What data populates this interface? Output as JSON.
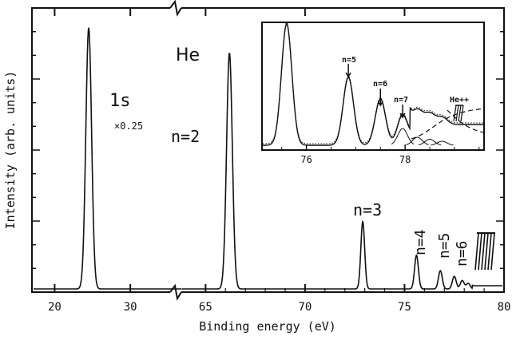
{
  "chart_data": [
    {
      "type": "line",
      "xlabel": "Binding energy (eV)",
      "ylabel": "Intensity (arb. units)",
      "x_axis_break": true,
      "x_segments": [
        {
          "range": [
            17,
            36
          ],
          "ticks": [
            20,
            30
          ]
        },
        {
          "range": [
            63.5,
            80
          ],
          "ticks": [
            65,
            70,
            75,
            80
          ]
        }
      ],
      "ylim": [
        0,
        1
      ],
      "peaks": [
        {
          "x": 24.5,
          "height": 0.93,
          "label": "1s"
        },
        {
          "x": 66.2,
          "height": 0.84,
          "label": "n=2"
        },
        {
          "x": 72.9,
          "height": 0.24,
          "label": "n=3"
        },
        {
          "x": 75.6,
          "height": 0.12,
          "label": "n=4"
        },
        {
          "x": 76.8,
          "height": 0.065,
          "label": "n=5"
        },
        {
          "x": 77.5,
          "height": 0.045,
          "label": "n=6"
        },
        {
          "x": 77.9,
          "height": 0.03
        },
        {
          "x": 78.2,
          "height": 0.02
        }
      ],
      "annotations": {
        "species": "He",
        "scale_note": "×0.25"
      }
    },
    {
      "type": "line",
      "role": "inset",
      "xlim": [
        75.1,
        79.6
      ],
      "x_ticks": [
        76,
        78
      ],
      "peaks": [
        {
          "x": 75.6,
          "height": 1.0
        },
        {
          "x": 76.85,
          "height": 0.56,
          "label": "n=5"
        },
        {
          "x": 77.5,
          "height": 0.38,
          "label": "n=6"
        },
        {
          "x": 77.95,
          "height": 0.25,
          "label": "n=7"
        },
        {
          "x": 78.25,
          "height": 0.12
        },
        {
          "x": 78.5,
          "height": 0.09
        },
        {
          "x": 78.75,
          "height": 0.06
        }
      ],
      "annotations": {
        "threshold": "He++"
      }
    }
  ]
}
